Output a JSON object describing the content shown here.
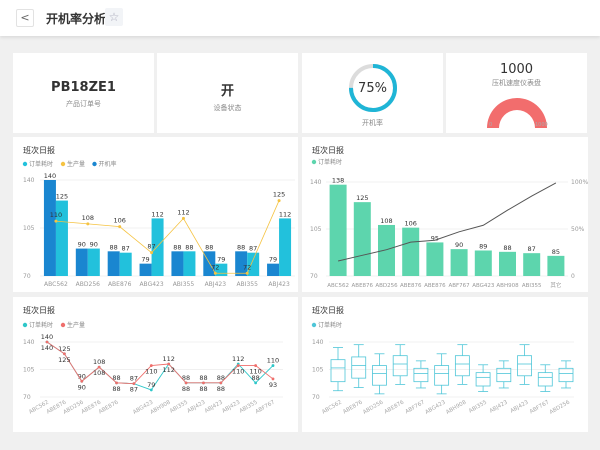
{
  "header": {
    "title": "开机率分析",
    "back_icon": "chevron-left",
    "star_icon": "star-outline"
  },
  "cards": {
    "order": {
      "value": "PB18ZE1",
      "label": "产品订单号"
    },
    "status": {
      "value": "开",
      "label": "设备状态"
    },
    "rate": {
      "value": "75%",
      "label": "开机率",
      "percent": 75,
      "color": "#1fb5d6"
    },
    "gauge": {
      "value": "1000",
      "label": "压机速度仪表盘",
      "min": "0",
      "max": "1000",
      "level": 1.0,
      "color": "#f26d6d"
    }
  },
  "chart_data": [
    {
      "type": "bar",
      "title": "班次日报",
      "legend": [
        "订单耗时",
        "生产量",
        "开机率"
      ],
      "categories": [
        "ABC562",
        "ABD256",
        "ABE876",
        "ABG423",
        "ABI355",
        "ABJ423",
        "ABI355",
        "ABJ423"
      ],
      "ylim": [
        70,
        140
      ],
      "yticks": [
        "70",
        "105",
        "140"
      ],
      "series": [
        {
          "name": "开机率",
          "kind": "bar",
          "color": "#1a86d0",
          "values": [
            140,
            90,
            88,
            79,
            88,
            88,
            88,
            79
          ]
        },
        {
          "name": "订单耗时",
          "kind": "bar",
          "color": "#22c1dc",
          "values": [
            125,
            90,
            87,
            112,
            88,
            79,
            87,
            112
          ]
        },
        {
          "name": "生产量",
          "kind": "line",
          "color": "#f5c342",
          "values": [
            110,
            108,
            106,
            87,
            112,
            72,
            72,
            125
          ]
        }
      ]
    },
    {
      "type": "bar",
      "title": "班次日报",
      "legend": [
        "订单耗时"
      ],
      "categories": [
        "ABC562",
        "ABE876",
        "ABD256",
        "ABE876",
        "ABE876",
        "ABF767",
        "ABG423",
        "ABH908",
        "ABI355",
        "其它"
      ],
      "ylim": [
        70,
        140
      ],
      "yticks": [
        "70",
        "105",
        "140"
      ],
      "y2ticks": [
        "0",
        "50%",
        "100%"
      ],
      "series": [
        {
          "name": "订单耗时",
          "kind": "bar",
          "color": "#5dd5ad",
          "values": [
            138,
            125,
            108,
            106,
            95,
            90,
            89,
            88,
            87,
            85
          ]
        },
        {
          "kind": "line",
          "axis": "right",
          "color": "#555555",
          "values": [
            16,
            22,
            28,
            36,
            38,
            47,
            54,
            70,
            85,
            99
          ]
        }
      ]
    },
    {
      "type": "line",
      "title": "班次日报",
      "legend": [
        "订单耗时",
        "生产量"
      ],
      "categories": [
        "ABC562",
        "ABE876",
        "ABD256",
        "ABE876",
        "ABE876",
        "",
        "ABG423",
        "ABH908",
        "ABI355",
        "ABJ423",
        "ABJ423",
        "ABJ423",
        "ABI355",
        "ABF767"
      ],
      "ylim": [
        70,
        140
      ],
      "yticks": [
        "70",
        "105",
        "140"
      ],
      "series": [
        {
          "name": "订单耗时",
          "color": "#2ec7c9",
          "values": [
            140,
            125,
            90,
            108,
            88,
            87,
            79,
            112,
            88,
            88,
            88,
            112,
            88,
            110
          ]
        },
        {
          "name": "生产量",
          "color": "#ef6f6c",
          "values": [
            140,
            125,
            90,
            108,
            88,
            87,
            110,
            112,
            88,
            88,
            88,
            110,
            110,
            93
          ]
        }
      ]
    },
    {
      "type": "boxplot",
      "title": "班次日报",
      "legend": [
        "订单耗时"
      ],
      "categories": [
        "ABC562",
        "ABE876",
        "ABD256",
        "ABE876",
        "ABF767",
        "ABG423",
        "ABH908",
        "ABI355",
        "ABJ423",
        "ABJ423",
        "ABF767",
        "ABD256"
      ],
      "ylim": [
        70,
        140
      ],
      "yticks": [
        "70",
        "105",
        "140"
      ],
      "color": "#4fc6d8",
      "boxes": [
        [
          78,
          89.5,
          107,
          117.5,
          133
        ],
        [
          82,
          94,
          110,
          121,
          136.6
        ],
        [
          74,
          85,
          100,
          110,
          125
        ],
        [
          86,
          97,
          112,
          122.6,
          136.6
        ],
        [
          81.5,
          89.5,
          100,
          106.5,
          116
        ],
        [
          74,
          85,
          100,
          110,
          125
        ],
        [
          86,
          97,
          112,
          122.6,
          136.6
        ],
        [
          77,
          84,
          95,
          101,
          111
        ],
        [
          81.5,
          89.5,
          100,
          106.5,
          116
        ],
        [
          86,
          97,
          112,
          122.6,
          136.6
        ],
        [
          77,
          84,
          95,
          101,
          111
        ],
        [
          81.5,
          89.5,
          100,
          106.5,
          116
        ]
      ]
    }
  ]
}
